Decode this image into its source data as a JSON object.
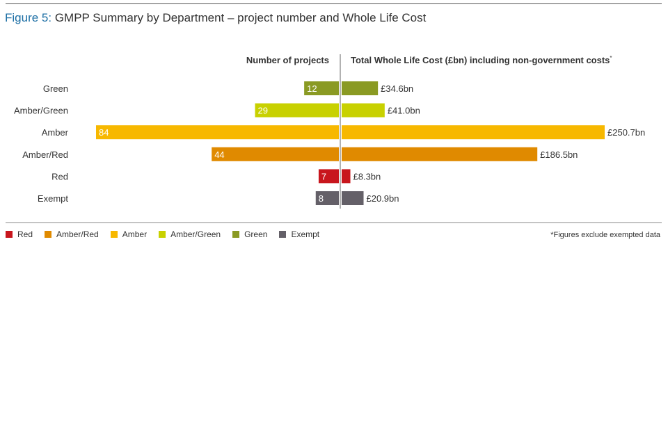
{
  "title": {
    "prefix": "Figure 5:",
    "text": "GMPP Summary by Department – project number and Whole Life Cost"
  },
  "footnote": "*Figures exclude exempted data",
  "colors": {
    "Green": "#8a9a23",
    "Amber/Green": "#c8d100",
    "Amber": "#f7b800",
    "Amber/Red": "#e08a00",
    "Red": "#c8161d",
    "Exempt": "#646068",
    "divider": "#999999"
  },
  "legend": [
    "Red",
    "Amber/Red",
    "Amber",
    "Amber/Green",
    "Green",
    "Exempt"
  ],
  "chart_data": {
    "type": "bar",
    "orientation": "horizontal",
    "categories": [
      "Green",
      "Amber/Green",
      "Amber",
      "Amber/Red",
      "Red",
      "Exempt"
    ],
    "series": [
      {
        "name": "Number of projects",
        "values": [
          12,
          29,
          84,
          44,
          7,
          8
        ],
        "labels": [
          "12",
          "29",
          "84",
          "44",
          "7",
          "8"
        ]
      },
      {
        "name": "Total Whole Life Cost (£bn) including non-government costs*",
        "values": [
          34.6,
          41.0,
          250.7,
          186.5,
          8.3,
          20.9
        ],
        "labels": [
          "£34.6bn",
          "£41.0bn",
          "£250.7bn",
          "£186.5bn",
          "£8.3bn",
          "£20.9bn"
        ]
      }
    ],
    "left_header": "Number of projects",
    "right_header": "Total Whole Life Cost (£bn) including non-government costs*"
  }
}
